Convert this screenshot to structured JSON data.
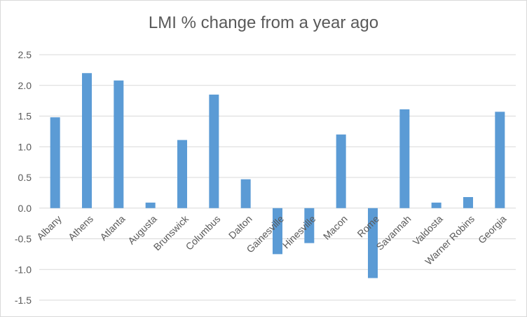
{
  "chart_data": {
    "type": "bar",
    "title": "LMI % change from a year ago",
    "xlabel": "",
    "ylabel": "",
    "categories": [
      "Albany",
      "Athens",
      "Atlanta",
      "Augusta",
      "Brunswick",
      "Columbus",
      "Dalton",
      "Gainesville",
      "Hinesville",
      "Macon",
      "Rome",
      "Savannah",
      "Valdosta",
      "Warner Robins",
      "Georgia"
    ],
    "values": [
      1.48,
      2.2,
      2.08,
      0.09,
      1.11,
      1.85,
      0.47,
      -0.75,
      -0.57,
      1.2,
      -1.14,
      1.61,
      0.09,
      0.18,
      1.57
    ],
    "ylim": [
      -1.5,
      2.5
    ],
    "yticks": [
      "2.5",
      "2.0",
      "1.5",
      "1.0",
      "0.5",
      "0.0",
      "-0.5",
      "-1.0",
      "-1.5"
    ],
    "grid": true,
    "legend": "none",
    "bar_color": "#5b9bd5",
    "grid_color": "#d9d9d9"
  }
}
